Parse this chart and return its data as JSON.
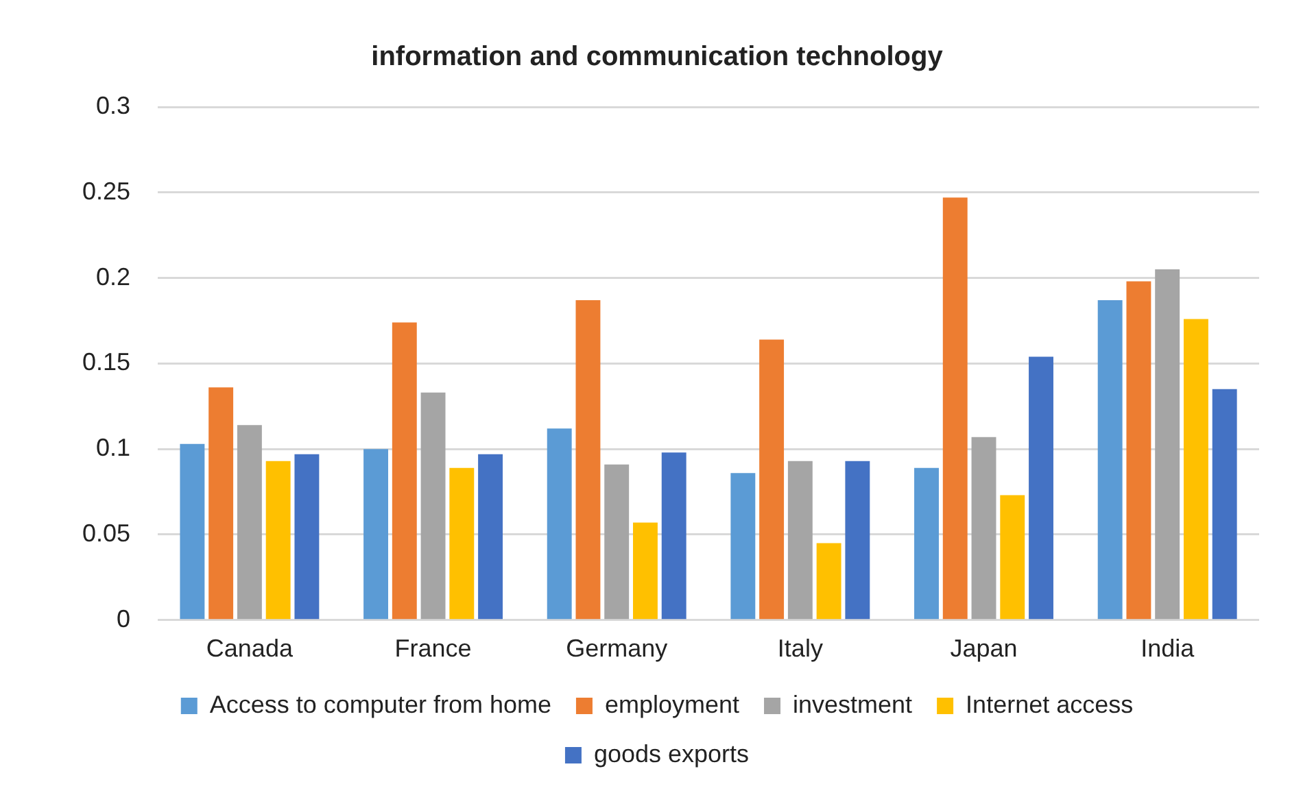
{
  "chart_data": {
    "type": "bar",
    "title": "information and communication technology",
    "categories": [
      "Canada",
      "France",
      "Germany",
      "Italy",
      "Japan",
      "India"
    ],
    "series": [
      {
        "name": "Access to computer from home",
        "color": "#5b9bd5",
        "values": [
          0.103,
          0.1,
          0.112,
          0.086,
          0.089,
          0.187
        ]
      },
      {
        "name": "employment",
        "color": "#ed7d31",
        "values": [
          0.136,
          0.174,
          0.187,
          0.164,
          0.247,
          0.198
        ]
      },
      {
        "name": "investment",
        "color": "#a5a5a5",
        "values": [
          0.114,
          0.133,
          0.091,
          0.093,
          0.107,
          0.205
        ]
      },
      {
        "name": "Internet access",
        "color": "#ffc000",
        "values": [
          0.093,
          0.089,
          0.057,
          0.045,
          0.073,
          0.176
        ]
      },
      {
        "name": "goods exports",
        "color": "#4472c4",
        "values": [
          0.097,
          0.097,
          0.098,
          0.093,
          0.154,
          0.135
        ]
      }
    ],
    "ylim": [
      0,
      0.3
    ],
    "yticks": [
      0,
      0.05,
      0.1,
      0.15,
      0.2,
      0.25,
      0.3
    ],
    "grid": "y",
    "legend": "bottom"
  }
}
